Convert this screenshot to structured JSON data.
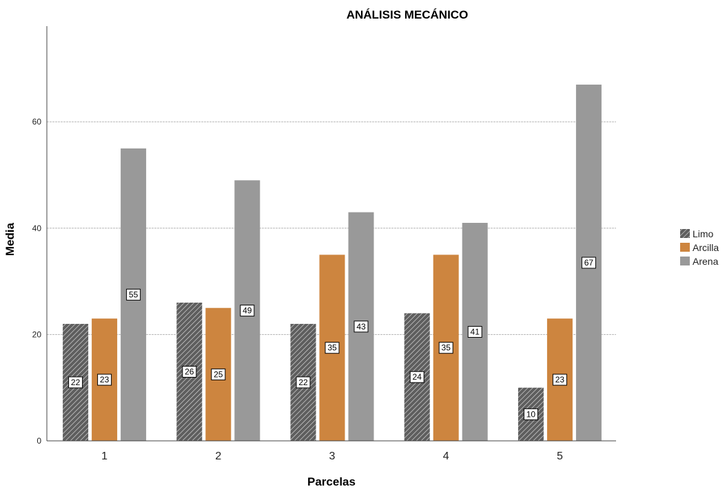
{
  "chart_data": {
    "type": "bar",
    "title": "ANÁLISIS MECÁNICO",
    "xlabel": "Parcelas",
    "ylabel": "Media",
    "categories": [
      "1",
      "2",
      "3",
      "4",
      "5"
    ],
    "yticks": [
      "0",
      "20",
      "40",
      "60"
    ],
    "ylim": [
      0,
      78
    ],
    "grid": true,
    "legend_position": "right",
    "series": [
      {
        "name": "Limo",
        "values": [
          22,
          26,
          22,
          24,
          10
        ],
        "labels": [
          "22",
          "26",
          "22",
          "24",
          "10"
        ],
        "color": "#5a5a5a",
        "pattern": "hatch"
      },
      {
        "name": "Arcilla",
        "values": [
          23,
          25,
          35,
          35,
          23
        ],
        "labels": [
          "23",
          "25",
          "35",
          "35",
          "23"
        ],
        "color": "#cd853f"
      },
      {
        "name": "Arena",
        "values": [
          55,
          49,
          43,
          41,
          67
        ],
        "labels": [
          "55",
          "49",
          "43",
          "41",
          "67"
        ],
        "color": "#999999"
      }
    ]
  }
}
